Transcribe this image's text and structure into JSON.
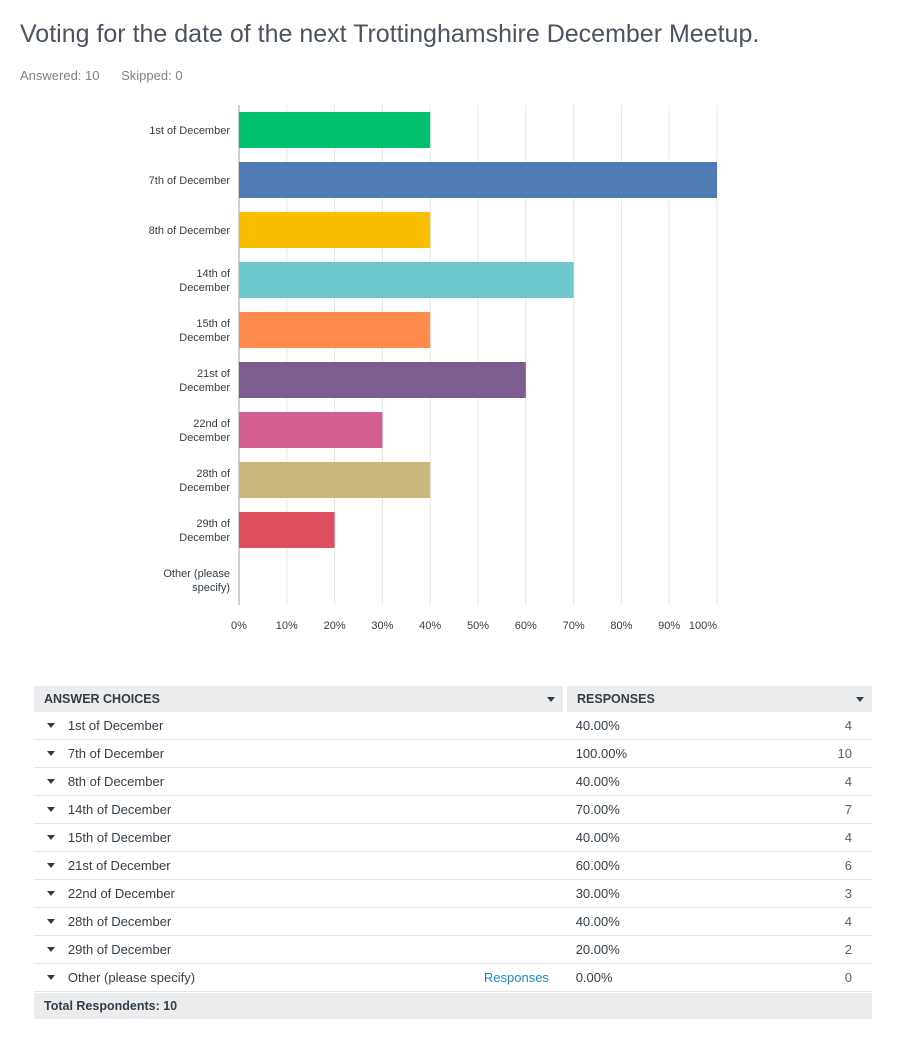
{
  "title": "Voting for the date of the next Trottinghamshire December Meetup.",
  "answered": "Answered: 10",
  "skipped": "Skipped: 0",
  "chart_data": {
    "type": "bar",
    "orientation": "horizontal",
    "categories": [
      "1st of December",
      "7th of December",
      "8th of December",
      "14th of December",
      "15th of December",
      "21st of December",
      "22nd of December",
      "28th of December",
      "29th of December",
      "Other (please specify)"
    ],
    "category_lines": [
      [
        "1st of December"
      ],
      [
        "7th of December"
      ],
      [
        "8th of December"
      ],
      [
        "14th of",
        "December"
      ],
      [
        "15th of",
        "December"
      ],
      [
        "21st of",
        "December"
      ],
      [
        "22nd of",
        "December"
      ],
      [
        "28th of",
        "December"
      ],
      [
        "29th of",
        "December"
      ],
      [
        "Other (please",
        "specify)"
      ]
    ],
    "values": [
      40,
      100,
      40,
      70,
      40,
      60,
      30,
      40,
      20,
      0
    ],
    "colors": [
      "#00bf6f",
      "#507cb6",
      "#f9be00",
      "#6bc8cd",
      "#ff8b4f",
      "#7d5e90",
      "#d25f90",
      "#c9b97d",
      "#dd4e5f",
      "#cccccc"
    ],
    "xlim": [
      0,
      100
    ],
    "xticks": [
      "0%",
      "10%",
      "20%",
      "30%",
      "40%",
      "50%",
      "60%",
      "70%",
      "80%",
      "90%",
      "100%"
    ],
    "grid": true
  },
  "table": {
    "header_choices": "ANSWER CHOICES",
    "header_responses": "RESPONSES",
    "rows": [
      {
        "choice": "1st of December",
        "link": "",
        "pct": "40.00%",
        "count": "4"
      },
      {
        "choice": "7th of December",
        "link": "",
        "pct": "100.00%",
        "count": "10"
      },
      {
        "choice": "8th of December",
        "link": "",
        "pct": "40.00%",
        "count": "4"
      },
      {
        "choice": "14th of December",
        "link": "",
        "pct": "70.00%",
        "count": "7"
      },
      {
        "choice": "15th of December",
        "link": "",
        "pct": "40.00%",
        "count": "4"
      },
      {
        "choice": "21st of December",
        "link": "",
        "pct": "60.00%",
        "count": "6"
      },
      {
        "choice": "22nd of December",
        "link": "",
        "pct": "30.00%",
        "count": "3"
      },
      {
        "choice": "28th of December",
        "link": "",
        "pct": "40.00%",
        "count": "4"
      },
      {
        "choice": "29th of December",
        "link": "",
        "pct": "20.00%",
        "count": "2"
      },
      {
        "choice": "Other (please specify)",
        "link": "Responses",
        "pct": "0.00%",
        "count": "0"
      }
    ],
    "total": "Total Respondents: 10"
  }
}
